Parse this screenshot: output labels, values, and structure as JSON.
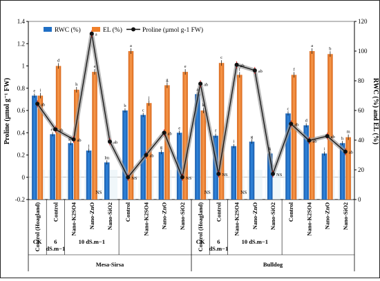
{
  "chart_data": {
    "type": "bar",
    "x": [
      "Control (Hoagland)",
      "Control",
      "Nano-K2SO4",
      "Nano-ZnO",
      "Nano-SiO2",
      "Control",
      "Nano-K2SO4",
      "Nano-ZnO",
      "Nano-SiO2",
      "Control (Hoagland)",
      "Control",
      "Nano-K2SO4",
      "Nano-ZnO",
      "Nano-SiO2",
      "Control",
      "Nano-K2SO4",
      "Nano-ZnO",
      "Nano-SiO2"
    ],
    "series": [
      {
        "name": "RWC (%)",
        "axis": "right",
        "values": [
          70,
          44,
          38,
          33,
          25,
          60,
          57,
          32,
          45,
          71,
          43,
          36,
          39,
          31,
          58,
          50,
          31,
          38
        ],
        "letters": [
          "e",
          "ef",
          "gh",
          "j",
          "lm",
          "b",
          "c",
          "g",
          "e",
          "a",
          "f",
          "i",
          "g",
          "k",
          "c",
          "d",
          "i",
          "h"
        ]
      },
      {
        "name": "EL (%)",
        "axis": "right",
        "values": [
          70,
          90,
          74,
          86,
          0,
          100,
          65,
          77,
          86,
          60,
          92,
          84,
          0,
          0,
          84,
          100,
          98,
          42
        ],
        "letters": [
          "i",
          "d",
          "h",
          "e",
          "",
          "a",
          "j",
          "g",
          "e",
          "k",
          "c",
          "f",
          "",
          "i",
          "f",
          "a",
          "b",
          "m"
        ]
      },
      {
        "name": "Proline (µmol g-1 FW)",
        "axis": "left",
        "values": [
          0.66,
          0.43,
          0.34,
          1.29,
          0.32,
          0.0,
          0.2,
          0.4,
          0.0,
          0.84,
          0.03,
          1.01,
          0.96,
          0.03,
          0.48,
          0.33,
          0.37,
          0.23
        ],
        "letters": [
          "ab",
          "ab",
          "ab",
          "a",
          "ab",
          "NS",
          "ab",
          "ab",
          "NS",
          "ab",
          "NS",
          "ab",
          "ab",
          "NS",
          "ab",
          "ab",
          "ab",
          "ab"
        ]
      }
    ],
    "ns_labels": [
      "NS",
      "NS",
      "NS"
    ],
    "group_labels": {
      "level1": [
        "CK",
        "6 dS.m−1",
        "10 dS.m−1",
        "CK",
        "6 dS.m−1",
        "10 dS.m−1"
      ],
      "cultivar": [
        "Mesa-Sirsa",
        "Bulldog"
      ]
    },
    "ylabel_left": "Proline (µmol g⁻¹ FW)",
    "ylabel_right": "RWC (%) and EL (%)",
    "ylim_left": [
      -0.2,
      1.4
    ],
    "ylim_right": [
      0,
      120
    ],
    "left_ticks": [
      "-0.2",
      "0",
      "0.2",
      "0.4",
      "0.6",
      "0.8",
      "1",
      "1.2",
      "1.4"
    ],
    "right_ticks": [
      "0",
      "20",
      "40",
      "60",
      "80",
      "100",
      "120"
    ],
    "colors": {
      "rwc": "#1f6fc5",
      "el": "#f07f2a",
      "proline": "#111111",
      "gray_line": "#8c8c8c"
    },
    "legend_position": "top-left",
    "grid": false
  }
}
